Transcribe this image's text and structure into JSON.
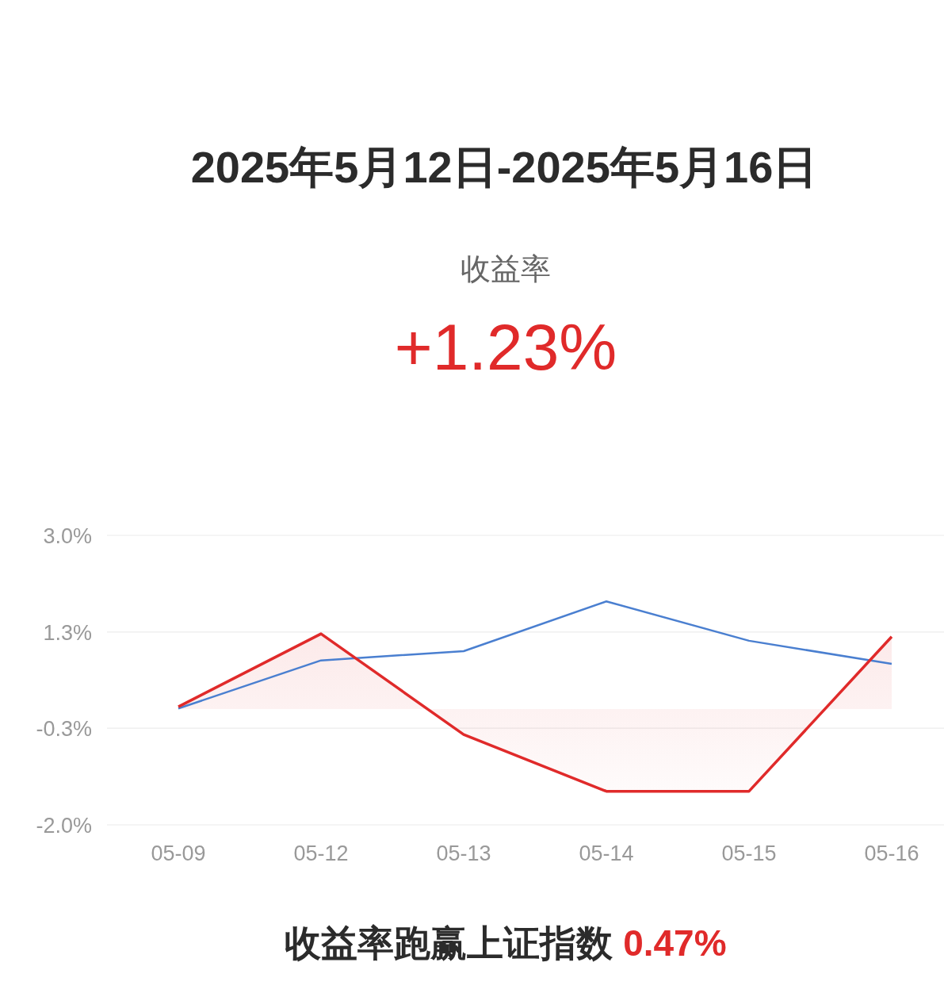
{
  "chart_data": {
    "type": "line",
    "title": "2025年5月12日-2025年5月16日",
    "subtitle": "收益率",
    "annotations": [
      "+1.23%",
      "收益率跑赢上证指数",
      "0.47%"
    ],
    "categories": [
      "05-09",
      "05-12",
      "05-13",
      "05-14",
      "05-15",
      "05-16"
    ],
    "series": [
      {
        "color": "#4a7fd0",
        "values": [
          0.01,
          0.84,
          1.0,
          1.86,
          1.18,
          0.78
        ]
      },
      {
        "type": "area",
        "color": "#e02a2a",
        "values": [
          0.04,
          1.3,
          -0.44,
          -1.42,
          -1.42,
          1.25
        ]
      }
    ],
    "ylim": [
      -2,
      3
    ],
    "yticks": [
      {
        "value": -2,
        "label": "-2.0%"
      },
      {
        "value": -0.33,
        "label": "-0.3%"
      },
      {
        "value": 1.33,
        "label": "1.3%"
      },
      {
        "value": 3,
        "label": "3.0%"
      }
    ],
    "grid": "y",
    "marker": "none",
    "line_style": "solid"
  }
}
